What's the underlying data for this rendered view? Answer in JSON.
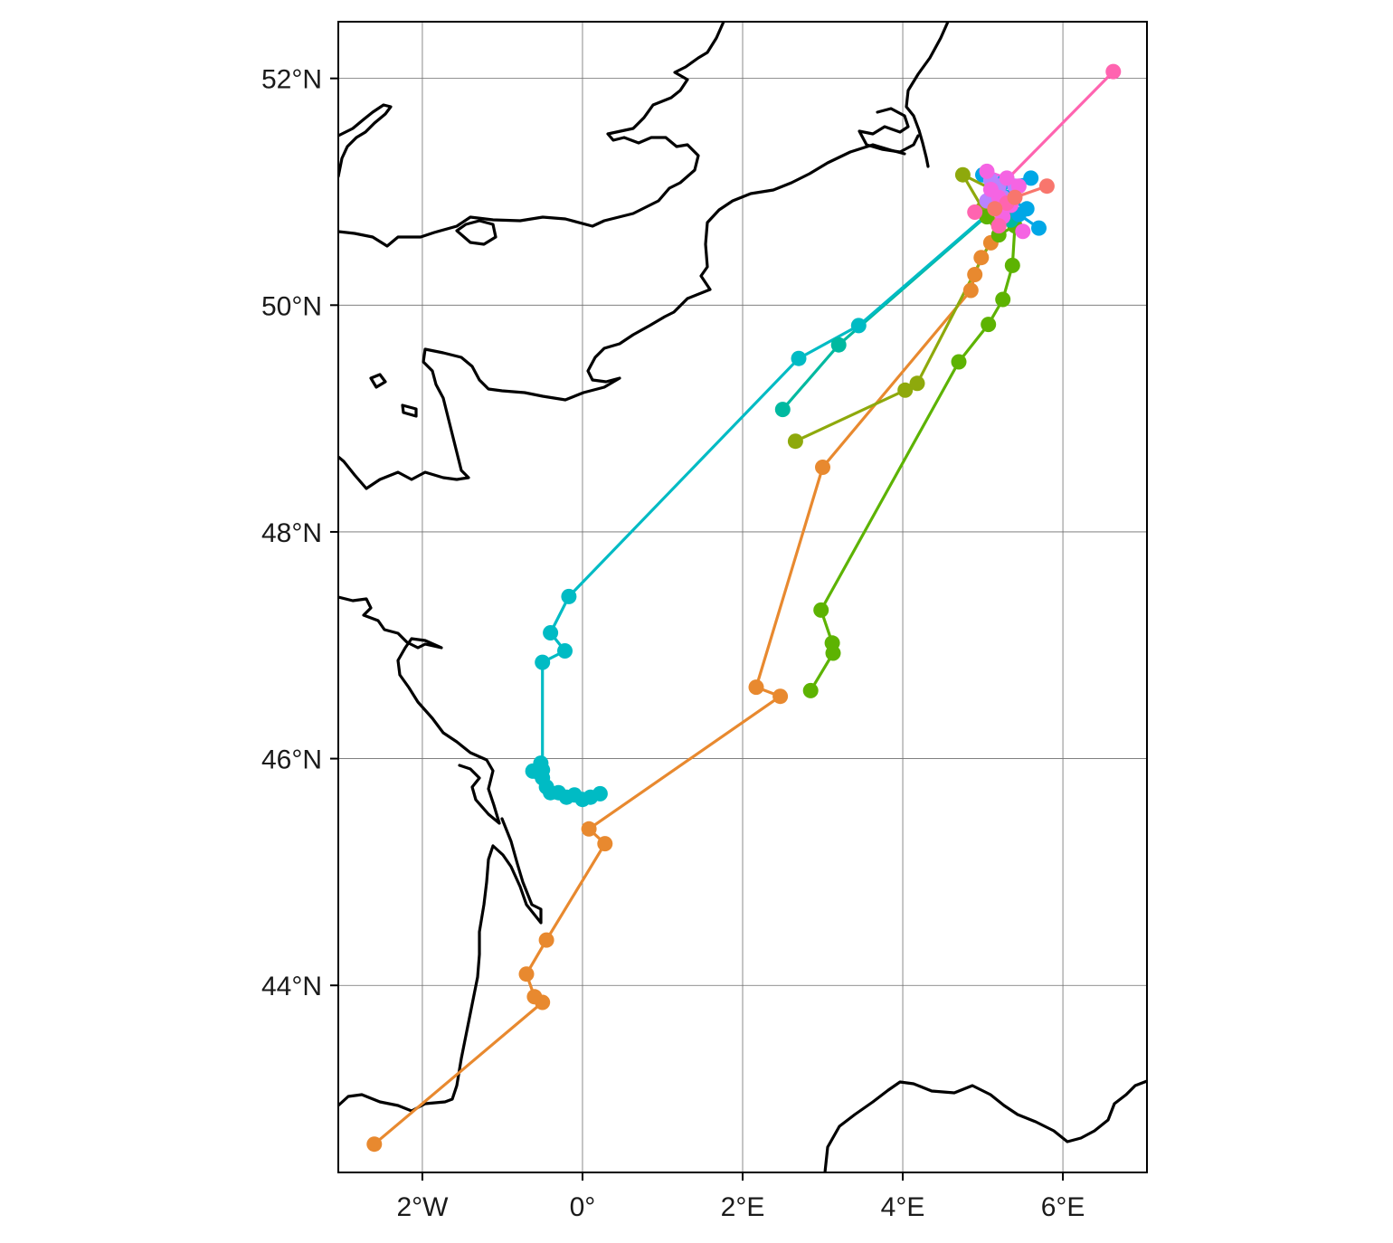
{
  "chart_data": {
    "type": "map-scatter-line",
    "title": "",
    "xlabel": "",
    "ylabel": "",
    "xlim": [
      -3.05,
      7.05
    ],
    "ylim": [
      42.35,
      52.5
    ],
    "grid": true,
    "legend": "none",
    "x_ticks": [
      {
        "value": -2,
        "label": "2°W"
      },
      {
        "value": 0,
        "label": "0°"
      },
      {
        "value": 2,
        "label": "2°E"
      },
      {
        "value": 4,
        "label": "4°E"
      },
      {
        "value": 6,
        "label": "6°E"
      }
    ],
    "y_ticks": [
      {
        "value": 44,
        "label": "44°N"
      },
      {
        "value": 46,
        "label": "46°N"
      },
      {
        "value": 48,
        "label": "48°N"
      },
      {
        "value": 50,
        "label": "50°N"
      },
      {
        "value": 52,
        "label": "52°N"
      }
    ],
    "series": [
      {
        "color": "#e8892f",
        "points": [
          [
            -2.6,
            42.6
          ],
          [
            -0.5,
            43.85
          ],
          [
            -0.6,
            43.9
          ],
          [
            -0.7,
            44.1
          ],
          [
            -0.45,
            44.4
          ],
          [
            0.28,
            45.25
          ],
          [
            0.08,
            45.38
          ],
          [
            2.47,
            46.55
          ],
          [
            2.17,
            46.63
          ],
          [
            3.0,
            48.57
          ],
          [
            4.85,
            50.13
          ],
          [
            4.9,
            50.27
          ],
          [
            4.98,
            50.42
          ],
          [
            5.1,
            50.55
          ],
          [
            5.2,
            50.72
          ]
        ]
      },
      {
        "color": "#8ea90c",
        "points": [
          [
            2.66,
            48.8
          ],
          [
            4.03,
            49.25
          ],
          [
            4.18,
            49.31
          ],
          [
            5.2,
            50.7
          ],
          [
            5.0,
            50.85
          ],
          [
            4.75,
            51.15
          ],
          [
            5.12,
            51.02
          ]
        ]
      },
      {
        "color": "#5db302",
        "points": [
          [
            2.85,
            46.6
          ],
          [
            3.13,
            46.93
          ],
          [
            3.12,
            47.02
          ],
          [
            2.98,
            47.31
          ],
          [
            4.7,
            49.5
          ],
          [
            5.07,
            49.83
          ],
          [
            5.25,
            50.05
          ],
          [
            5.37,
            50.35
          ],
          [
            5.4,
            50.7
          ],
          [
            5.2,
            50.62
          ],
          [
            5.05,
            50.78
          ],
          [
            5.3,
            50.95
          ]
        ]
      },
      {
        "color": "#00b9a0",
        "points": [
          [
            2.5,
            49.08
          ],
          [
            3.2,
            49.65
          ],
          [
            5.2,
            50.88
          ],
          [
            5.35,
            50.75
          ]
        ]
      },
      {
        "color": "#00bbc4",
        "points": [
          [
            0.22,
            45.69
          ],
          [
            0.1,
            45.66
          ],
          [
            0.0,
            45.64
          ],
          [
            -0.1,
            45.68
          ],
          [
            -0.2,
            45.66
          ],
          [
            -0.3,
            45.7
          ],
          [
            -0.4,
            45.7
          ],
          [
            -0.45,
            45.75
          ],
          [
            -0.5,
            45.83
          ],
          [
            -0.55,
            45.88
          ],
          [
            -0.52,
            45.96
          ],
          [
            -0.62,
            45.89
          ],
          [
            -0.5,
            45.9
          ],
          [
            -0.5,
            46.85
          ],
          [
            -0.22,
            46.95
          ],
          [
            -0.4,
            47.11
          ],
          [
            -0.17,
            47.43
          ],
          [
            2.7,
            49.53
          ],
          [
            3.45,
            49.82
          ],
          [
            5.25,
            50.92
          ]
        ]
      },
      {
        "color": "#00a7e6",
        "points": [
          [
            5.7,
            50.68
          ],
          [
            5.45,
            50.8
          ],
          [
            5.55,
            50.85
          ],
          [
            5.3,
            50.95
          ],
          [
            5.0,
            51.15
          ],
          [
            5.25,
            51.08
          ],
          [
            5.6,
            51.12
          ]
        ]
      },
      {
        "color": "#b983ff",
        "points": [
          [
            5.05,
            50.92
          ],
          [
            5.2,
            51.05
          ],
          [
            5.4,
            51.05
          ],
          [
            5.25,
            50.95
          ],
          [
            5.1,
            51.1
          ]
        ]
      },
      {
        "color": "#f564e3",
        "points": [
          [
            5.05,
            51.18
          ],
          [
            5.3,
            51.12
          ],
          [
            5.45,
            51.05
          ],
          [
            5.2,
            50.95
          ],
          [
            5.1,
            51.02
          ],
          [
            5.5,
            50.65
          ],
          [
            5.35,
            50.88
          ],
          [
            5.25,
            50.78
          ]
        ]
      },
      {
        "color": "#ff64b0",
        "points": [
          [
            5.2,
            50.7
          ],
          [
            5.3,
            50.9
          ],
          [
            4.9,
            50.82
          ],
          [
            6.63,
            52.06
          ]
        ]
      },
      {
        "color": "#f8766d",
        "points": [
          [
            5.8,
            51.05
          ],
          [
            5.4,
            50.95
          ],
          [
            5.15,
            50.85
          ]
        ]
      }
    ]
  }
}
